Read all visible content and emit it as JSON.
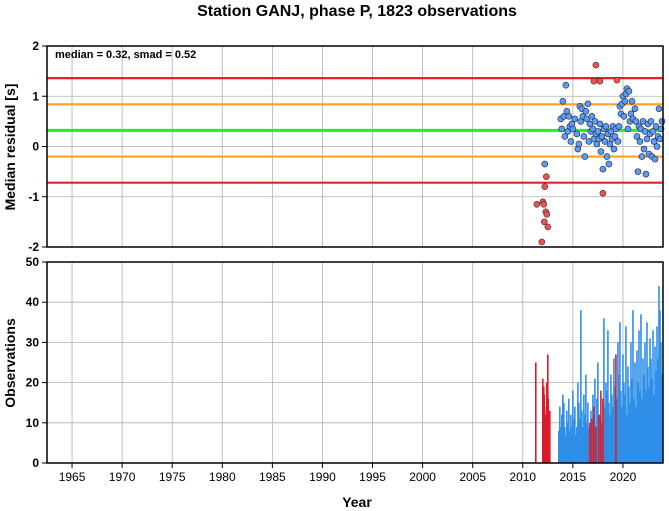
{
  "chart_data": [
    {
      "type": "scatter",
      "title": "Station GANJ, phase P, 1823 observations",
      "annotation": "median = 0.32, smad = 0.52",
      "xlabel": "",
      "ylabel": "Median residual [s]",
      "xlim": [
        1962.5,
        2024
      ],
      "ylim": [
        -2,
        2
      ],
      "yticks": [
        2,
        1,
        0,
        -1,
        -2
      ],
      "grid": true,
      "colors": {
        "outlier": "#ef5350",
        "normal": "#5b9cf6",
        "red_line": "#e8202a",
        "orange_line": "#ffa31a",
        "green_line": "#22ee22"
      },
      "reference_lines": [
        {
          "name": "median",
          "value": 0.32,
          "color": "#22ee22"
        },
        {
          "name": "median + 1 smad",
          "value": 0.84,
          "color": "#ffa31a"
        },
        {
          "name": "median - 1 smad",
          "value": -0.2,
          "color": "#ffa31a"
        },
        {
          "name": "median + 2 smad",
          "value": 1.36,
          "color": "#e8202a"
        },
        {
          "name": "median - 2 smad",
          "value": -0.72,
          "color": "#e8202a"
        }
      ],
      "series": [
        {
          "points_outliers": [
            [
              2011.4,
              -1.15
            ],
            [
              2011.9,
              -1.9
            ],
            [
              2012.0,
              -1.1
            ],
            [
              2012.1,
              -1.15
            ],
            [
              2012.15,
              -1.5
            ],
            [
              2012.3,
              -1.3
            ],
            [
              2012.4,
              -1.35
            ],
            [
              2012.5,
              -1.6
            ],
            [
              2012.2,
              -0.8
            ],
            [
              2012.35,
              -0.6
            ],
            [
              2017.1,
              1.3
            ],
            [
              2017.3,
              1.62
            ],
            [
              2017.7,
              1.3
            ],
            [
              2018.0,
              -0.93
            ],
            [
              2019.4,
              1.32
            ]
          ]
        },
        {
          "points_normal": [
            [
              2012.2,
              -0.35
            ],
            [
              2013.8,
              0.55
            ],
            [
              2013.9,
              0.35
            ],
            [
              2014.0,
              0.9
            ],
            [
              2014.1,
              0.6
            ],
            [
              2014.2,
              0.2
            ],
            [
              2014.3,
              1.22
            ],
            [
              2014.4,
              0.7
            ],
            [
              2014.5,
              0.3
            ],
            [
              2014.6,
              0.6
            ],
            [
              2014.7,
              0.4
            ],
            [
              2014.8,
              0.1
            ],
            [
              2014.9,
              0.45
            ],
            [
              2015.0,
              0.35
            ],
            [
              2015.2,
              0.55
            ],
            [
              2015.4,
              0.25
            ],
            [
              2015.5,
              -0.05
            ],
            [
              2015.6,
              0.05
            ],
            [
              2015.7,
              0.8
            ],
            [
              2015.8,
              0.5
            ],
            [
              2015.9,
              0.75
            ],
            [
              2016.0,
              0.6
            ],
            [
              2016.1,
              0.2
            ],
            [
              2016.2,
              -0.2
            ],
            [
              2016.3,
              0.7
            ],
            [
              2016.4,
              0.55
            ],
            [
              2016.5,
              0.85
            ],
            [
              2016.6,
              0.1
            ],
            [
              2016.7,
              0.45
            ],
            [
              2016.8,
              0.3
            ],
            [
              2016.9,
              0.6
            ],
            [
              2017.0,
              0.35
            ],
            [
              2017.1,
              0.15
            ],
            [
              2017.2,
              0.5
            ],
            [
              2017.3,
              0.25
            ],
            [
              2017.4,
              0.05
            ],
            [
              2017.5,
              0.3
            ],
            [
              2017.6,
              0.15
            ],
            [
              2017.7,
              0.45
            ],
            [
              2017.8,
              -0.1
            ],
            [
              2017.9,
              0.2
            ],
            [
              2018.0,
              -0.45
            ],
            [
              2018.1,
              0.35
            ],
            [
              2018.2,
              0.1
            ],
            [
              2018.3,
              0.4
            ],
            [
              2018.4,
              -0.2
            ],
            [
              2018.5,
              0.25
            ],
            [
              2018.6,
              -0.35
            ],
            [
              2018.7,
              0.05
            ],
            [
              2018.8,
              0.3
            ],
            [
              2018.9,
              0.15
            ],
            [
              2019.0,
              0.4
            ],
            [
              2019.1,
              -0.05
            ],
            [
              2019.2,
              0.2
            ],
            [
              2019.3,
              0.35
            ],
            [
              2019.5,
              0.1
            ],
            [
              2019.6,
              0.4
            ],
            [
              2019.7,
              0.8
            ],
            [
              2019.8,
              0.65
            ],
            [
              2019.9,
              0.85
            ],
            [
              2020.0,
              1.0
            ],
            [
              2020.1,
              0.6
            ],
            [
              2020.2,
              0.9
            ],
            [
              2020.3,
              1.05
            ],
            [
              2020.4,
              1.15
            ],
            [
              2020.5,
              0.35
            ],
            [
              2020.6,
              1.1
            ],
            [
              2020.7,
              0.5
            ],
            [
              2020.8,
              0.65
            ],
            [
              2020.9,
              0.9
            ],
            [
              2021.0,
              0.55
            ],
            [
              2021.2,
              0.75
            ],
            [
              2021.3,
              0.5
            ],
            [
              2021.4,
              0.2
            ],
            [
              2021.5,
              -0.5
            ],
            [
              2021.6,
              0.4
            ],
            [
              2021.7,
              0.1
            ],
            [
              2021.8,
              0.35
            ],
            [
              2021.9,
              -0.2
            ],
            [
              2022.0,
              0.5
            ],
            [
              2022.1,
              -0.05
            ],
            [
              2022.2,
              0.3
            ],
            [
              2022.3,
              -0.55
            ],
            [
              2022.4,
              0.15
            ],
            [
              2022.5,
              0.45
            ],
            [
              2022.6,
              -0.15
            ],
            [
              2022.7,
              0.25
            ],
            [
              2022.8,
              0.5
            ],
            [
              2022.9,
              -0.2
            ],
            [
              2023.0,
              0.3
            ],
            [
              2023.1,
              0.1
            ],
            [
              2023.2,
              -0.25
            ],
            [
              2023.3,
              0.4
            ],
            [
              2023.4,
              0.0
            ],
            [
              2023.5,
              0.2
            ],
            [
              2023.6,
              0.75
            ],
            [
              2023.7,
              0.15
            ],
            [
              2023.8,
              0.35
            ],
            [
              2023.9,
              0.5
            ]
          ]
        }
      ]
    },
    {
      "type": "bar",
      "xlabel": "Year",
      "ylabel": "Observations",
      "xlim": [
        1962.5,
        2024
      ],
      "ylim": [
        0,
        50
      ],
      "yticks": [
        50,
        40,
        30,
        20,
        10,
        0
      ],
      "xticks": [
        1965,
        1970,
        1975,
        1980,
        1985,
        1990,
        1995,
        2000,
        2005,
        2010,
        2015,
        2020
      ],
      "grid": true,
      "red_bars": [
        [
          2011.3,
          25
        ],
        [
          2012.0,
          21
        ],
        [
          2012.1,
          19
        ],
        [
          2012.15,
          17
        ],
        [
          2012.2,
          14
        ],
        [
          2012.25,
          12
        ],
        [
          2012.3,
          10
        ],
        [
          2012.35,
          8
        ],
        [
          2012.4,
          20
        ],
        [
          2012.45,
          15
        ],
        [
          2012.5,
          27
        ],
        [
          2012.55,
          16
        ],
        [
          2012.6,
          11
        ],
        [
          2012.65,
          9
        ],
        [
          2012.7,
          13
        ],
        [
          2016.7,
          10
        ],
        [
          2016.9,
          11
        ],
        [
          2017.1,
          14
        ],
        [
          2017.3,
          9
        ],
        [
          2017.6,
          12
        ],
        [
          2017.8,
          18
        ],
        [
          2018.0,
          16
        ],
        [
          2019.3,
          27
        ]
      ],
      "blue_bars": [
        [
          2013.6,
          8
        ],
        [
          2013.7,
          14
        ],
        [
          2013.8,
          9
        ],
        [
          2013.9,
          12
        ],
        [
          2014.0,
          17
        ],
        [
          2014.1,
          15
        ],
        [
          2014.2,
          9
        ],
        [
          2014.3,
          7
        ],
        [
          2014.4,
          13
        ],
        [
          2014.5,
          10
        ],
        [
          2014.6,
          16
        ],
        [
          2014.7,
          8
        ],
        [
          2014.8,
          12
        ],
        [
          2014.9,
          9
        ],
        [
          2015.0,
          18
        ],
        [
          2015.1,
          11
        ],
        [
          2015.2,
          14
        ],
        [
          2015.3,
          7
        ],
        [
          2015.4,
          9
        ],
        [
          2015.5,
          20
        ],
        [
          2015.6,
          15
        ],
        [
          2015.7,
          11
        ],
        [
          2015.8,
          38
        ],
        [
          2015.9,
          13
        ],
        [
          2016.0,
          9
        ],
        [
          2016.1,
          17
        ],
        [
          2016.2,
          12
        ],
        [
          2016.3,
          22
        ],
        [
          2016.4,
          10
        ],
        [
          2016.5,
          15
        ],
        [
          2016.6,
          9
        ],
        [
          2016.8,
          13
        ],
        [
          2017.0,
          17
        ],
        [
          2017.2,
          21
        ],
        [
          2017.4,
          16
        ],
        [
          2017.5,
          25
        ],
        [
          2017.7,
          12
        ],
        [
          2017.9,
          10
        ],
        [
          2018.1,
          36
        ],
        [
          2018.2,
          14
        ],
        [
          2018.3,
          20
        ],
        [
          2018.4,
          18
        ],
        [
          2018.5,
          33
        ],
        [
          2018.6,
          15
        ],
        [
          2018.7,
          12
        ],
        [
          2018.8,
          22
        ],
        [
          2018.9,
          17
        ],
        [
          2019.0,
          14
        ],
        [
          2019.1,
          26
        ],
        [
          2019.2,
          19
        ],
        [
          2019.4,
          16
        ],
        [
          2019.5,
          30
        ],
        [
          2019.6,
          22
        ],
        [
          2019.7,
          35
        ],
        [
          2019.8,
          18
        ],
        [
          2019.9,
          14
        ],
        [
          2020.0,
          27
        ],
        [
          2020.1,
          20
        ],
        [
          2020.2,
          17
        ],
        [
          2020.3,
          34
        ],
        [
          2020.4,
          12
        ],
        [
          2020.5,
          24
        ],
        [
          2020.6,
          19
        ],
        [
          2020.7,
          15
        ],
        [
          2020.8,
          30
        ],
        [
          2020.9,
          21
        ],
        [
          2021.0,
          38
        ],
        [
          2021.1,
          16
        ],
        [
          2021.2,
          25
        ],
        [
          2021.3,
          14
        ],
        [
          2021.4,
          28
        ],
        [
          2021.5,
          20
        ],
        [
          2021.6,
          33
        ],
        [
          2021.7,
          18
        ],
        [
          2021.8,
          37
        ],
        [
          2021.9,
          16
        ],
        [
          2022.0,
          26
        ],
        [
          2022.1,
          22
        ],
        [
          2022.2,
          30
        ],
        [
          2022.3,
          18
        ],
        [
          2022.4,
          35
        ],
        [
          2022.5,
          24
        ],
        [
          2022.6,
          19
        ],
        [
          2022.7,
          31
        ],
        [
          2022.8,
          26
        ],
        [
          2022.9,
          21
        ],
        [
          2023.0,
          33
        ],
        [
          2023.1,
          17
        ],
        [
          2023.2,
          29
        ],
        [
          2023.3,
          23
        ],
        [
          2023.4,
          34
        ],
        [
          2023.5,
          26
        ],
        [
          2023.6,
          44
        ],
        [
          2023.7,
          38
        ],
        [
          2023.8,
          30
        ],
        [
          2023.9,
          22
        ]
      ]
    }
  ]
}
